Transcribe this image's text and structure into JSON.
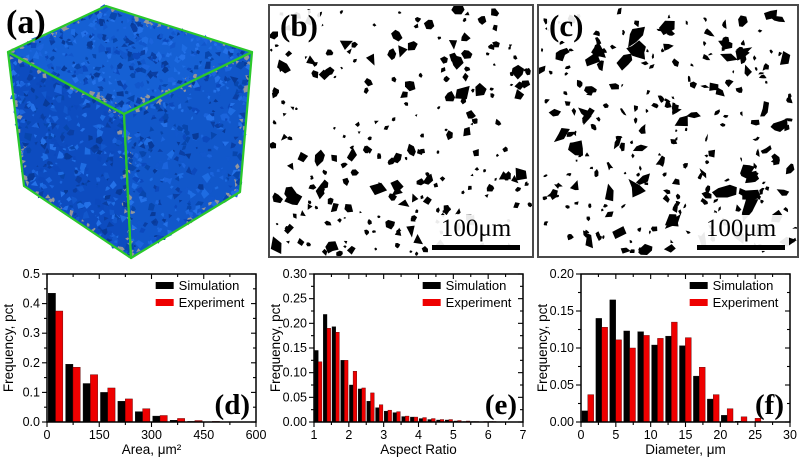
{
  "figure": {
    "panels": {
      "a": {
        "label": "(a)"
      },
      "b": {
        "label": "(b)",
        "scale_bar": "100μm"
      },
      "c": {
        "label": "(c)",
        "scale_bar": "100μm"
      }
    }
  },
  "colors": {
    "simulation": "#000000",
    "experiment": "#ee0000",
    "experiment_edge": "#550000",
    "axis_black": "#000000",
    "cube_edge_green": "#2bc82b",
    "cube_gray": "#94979c",
    "cube_blue_base": "#1257cc",
    "cube_blue_palette": [
      "#0a3fa4",
      "#0c49bd",
      "#1257cc",
      "#1b64dc",
      "#2471e8",
      "#0846ad",
      "#1e6ce2",
      "#083a98"
    ],
    "particle_black": "#000000",
    "panel_border_gray": "#4a4a4a"
  },
  "chart_data": [
    {
      "id": "d",
      "panel_label": "(d)",
      "type": "bar",
      "xlabel": "Area, μm²",
      "ylabel": "Frequency, pct",
      "xlim": [
        0,
        600
      ],
      "xticks": [
        0,
        150,
        300,
        450,
        600
      ],
      "ylim": [
        0,
        0.5
      ],
      "yticks": [
        0,
        0.1,
        0.2,
        0.3,
        0.4,
        0.5
      ],
      "ytick_decimals": 1,
      "bin_start": 0,
      "bin_width": 50,
      "legend_position": "top-right",
      "series": [
        {
          "name": "Simulation",
          "color_key": "simulation",
          "values": [
            0.435,
            0.195,
            0.13,
            0.1,
            0.07,
            0.035,
            0.02,
            0.006,
            0.002,
            0.001
          ]
        },
        {
          "name": "Experiment",
          "color_key": "experiment",
          "values": [
            0.375,
            0.185,
            0.16,
            0.115,
            0.078,
            0.045,
            0.022,
            0.012,
            0.005,
            0.002
          ]
        }
      ]
    },
    {
      "id": "e",
      "panel_label": "(e)",
      "type": "bar",
      "xlabel": "Aspect Ratio",
      "ylabel": "Frequency, pct",
      "xlim": [
        1,
        7
      ],
      "xticks": [
        1,
        2,
        3,
        4,
        5,
        6,
        7
      ],
      "ylim": [
        0,
        0.3
      ],
      "yticks": [
        0,
        0.05,
        0.1,
        0.15,
        0.2,
        0.25,
        0.3
      ],
      "ytick_decimals": 2,
      "bin_start": 1,
      "bin_width": 0.25,
      "legend_position": "top-right",
      "series": [
        {
          "name": "Simulation",
          "color_key": "simulation",
          "values": [
            0.145,
            0.218,
            0.193,
            0.125,
            0.075,
            0.067,
            0.042,
            0.029,
            0.022,
            0.019,
            0.011,
            0.01,
            0.007,
            0.005,
            0.004,
            0.004,
            0.002,
            0.001,
            0.001,
            0.0,
            0.001
          ]
        },
        {
          "name": "Experiment",
          "color_key": "experiment",
          "values": [
            0.122,
            0.19,
            0.182,
            0.125,
            0.103,
            0.069,
            0.059,
            0.035,
            0.024,
            0.021,
            0.012,
            0.01,
            0.009,
            0.007,
            0.005,
            0.005,
            0.003,
            0.002,
            0.001,
            0.001,
            0.001
          ]
        }
      ]
    },
    {
      "id": "f",
      "panel_label": "(f)",
      "type": "bar",
      "xlabel": "Diameter, μm",
      "ylabel": "Frequency, pct",
      "xlim": [
        0,
        30
      ],
      "xticks": [
        0,
        5,
        10,
        15,
        20,
        25,
        30
      ],
      "ylim": [
        0,
        0.2
      ],
      "yticks": [
        0,
        0.05,
        0.1,
        0.15,
        0.2
      ],
      "ytick_decimals": 2,
      "bin_start": 0,
      "bin_width": 2,
      "legend_position": "top-right",
      "series": [
        {
          "name": "Simulation",
          "color_key": "simulation",
          "values": [
            0.015,
            0.14,
            0.165,
            0.123,
            0.122,
            0.104,
            0.116,
            0.103,
            0.062,
            0.031,
            0.009,
            0.001,
            0.0
          ]
        },
        {
          "name": "Experiment",
          "color_key": "experiment",
          "values": [
            0.037,
            0.128,
            0.111,
            0.1,
            0.117,
            0.113,
            0.135,
            0.114,
            0.074,
            0.037,
            0.018,
            0.007,
            0.005
          ]
        }
      ]
    }
  ]
}
